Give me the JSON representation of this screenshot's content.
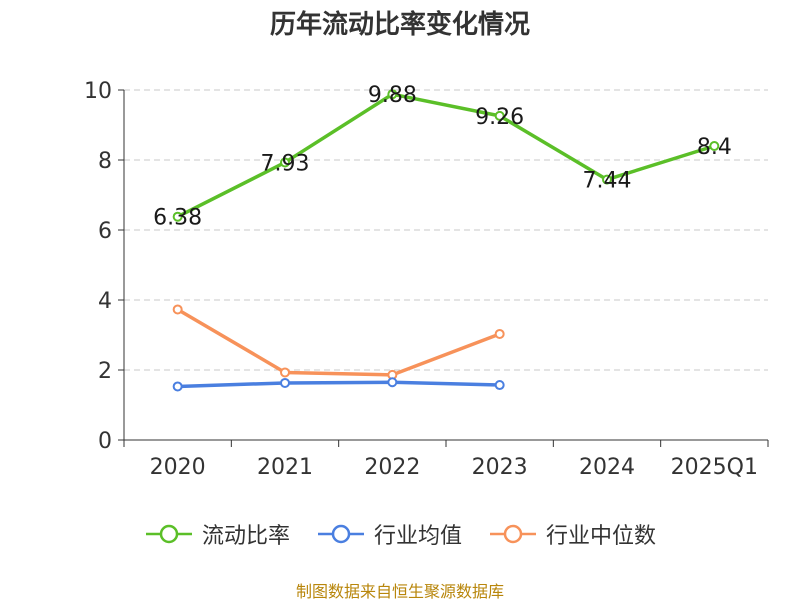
{
  "title": "历年流动比率变化情况",
  "source": "制图数据来自恒生聚源数据库",
  "colors": {
    "current_ratio": "#5bbf28",
    "industry_mean": "#4a7fe0",
    "industry_median": "#f7925a",
    "grid": "#c8c8c8",
    "axis": "#333333"
  },
  "chart_data": {
    "type": "line",
    "title": "历年流动比率变化情况",
    "categories": [
      "2020",
      "2021",
      "2022",
      "2023",
      "2024",
      "2025Q1"
    ],
    "ylim": [
      0,
      10
    ],
    "yticks": [
      0,
      2,
      4,
      6,
      8,
      10
    ],
    "grid": true,
    "legend_position": "bottom",
    "series": [
      {
        "name": "流动比率",
        "color": "#5bbf28",
        "values": [
          6.38,
          7.93,
          9.88,
          9.26,
          7.44,
          8.4
        ],
        "labels": [
          "6.38",
          "7.93",
          "9.88",
          "9.26",
          "7.44",
          "8.4"
        ]
      },
      {
        "name": "行业均值",
        "color": "#4a7fe0",
        "values": [
          1.53,
          1.63,
          1.65,
          1.57,
          null,
          null
        ]
      },
      {
        "name": "行业中位数",
        "color": "#f7925a",
        "values": [
          3.73,
          1.93,
          1.86,
          3.03,
          null,
          null
        ]
      }
    ]
  }
}
